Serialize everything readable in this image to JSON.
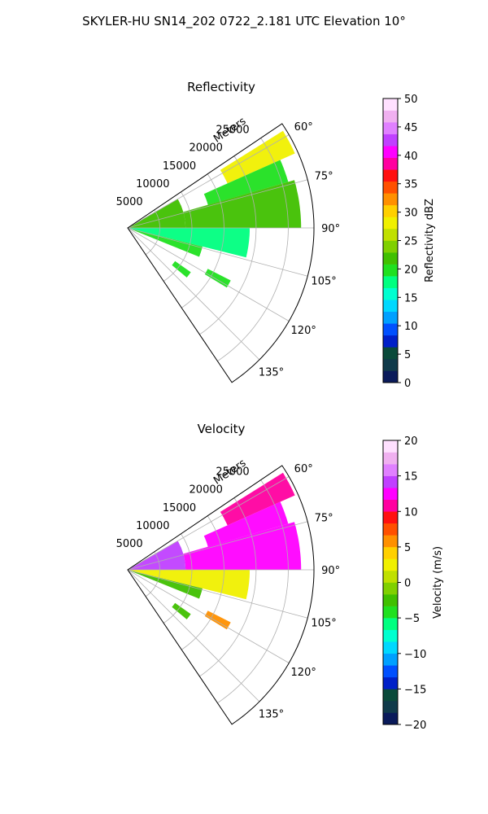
{
  "figure_title": "SKYLER-HU  SN14_202  0722_2.181 UTC Elevation 10°",
  "chart_data": [
    {
      "type": "polar-sector",
      "title": "Reflectivity",
      "range_label": "Meters",
      "range_ticks": [
        5000,
        10000,
        15000,
        20000,
        25000
      ],
      "range_tick_labels": [
        "5000",
        "10000",
        "15000",
        "20000",
        "25000"
      ],
      "azimuth_range": [
        56,
        146
      ],
      "azimuth_ticks": [
        60,
        75,
        90,
        105,
        120,
        135
      ],
      "azimuth_tick_labels": [
        "60°",
        "75°",
        "90°",
        "105°",
        "120°",
        "135°"
      ],
      "max_range": 29000,
      "grid": true,
      "colorbar": {
        "label": "Reflectivity dBZ",
        "range": [
          0,
          50
        ],
        "ticks": [
          0,
          5,
          10,
          15,
          20,
          25,
          30,
          35,
          40,
          45,
          50
        ],
        "tick_labels": [
          "0",
          "5",
          "10",
          "15",
          "20",
          "25",
          "30",
          "35",
          "40",
          "45",
          "50"
        ],
        "colors": [
          "#0a1a5a",
          "#103a4a",
          "#0a4a3a",
          "#0020c8",
          "#0050ff",
          "#00a0ff",
          "#00d8ff",
          "#00ffd0",
          "#00ff80",
          "#20e020",
          "#40c000",
          "#80d000",
          "#c0e000",
          "#f0f000",
          "#ffd000",
          "#ff9000",
          "#ff5000",
          "#ff1010",
          "#ff00a0",
          "#ff00ff",
          "#c040ff",
          "#e080ff",
          "#f0b0f0",
          "#ffe0ff"
        ]
      },
      "echo_regions": [
        {
          "az": [
            58,
            66
          ],
          "r": [
            17000,
            28500
          ],
          "value": 28
        },
        {
          "az": [
            66,
            74
          ],
          "r": [
            13000,
            26000
          ],
          "value": 20
        },
        {
          "az": [
            74,
            90
          ],
          "r": [
            9000,
            27000
          ],
          "value": 21
        },
        {
          "az": [
            60,
            90
          ],
          "r": [
            0,
            9000
          ],
          "value": 22
        },
        {
          "az": [
            90,
            104
          ],
          "r": [
            0,
            19000
          ],
          "value": 17
        },
        {
          "az": [
            104,
            112
          ],
          "r": [
            0,
            12000
          ],
          "value": 20
        },
        {
          "az": [
            117,
            121
          ],
          "r": [
            14000,
            18000
          ],
          "value": 19
        },
        {
          "az": [
            125,
            130
          ],
          "r": [
            9000,
            12000
          ],
          "value": 20
        }
      ]
    },
    {
      "type": "polar-sector",
      "title": "Velocity",
      "range_label": "Meters",
      "range_ticks": [
        5000,
        10000,
        15000,
        20000,
        25000
      ],
      "range_tick_labels": [
        "5000",
        "10000",
        "15000",
        "20000",
        "25000"
      ],
      "azimuth_range": [
        56,
        146
      ],
      "azimuth_ticks": [
        60,
        75,
        90,
        105,
        120,
        135
      ],
      "azimuth_tick_labels": [
        "60°",
        "75°",
        "90°",
        "105°",
        "120°",
        "135°"
      ],
      "max_range": 29000,
      "grid": true,
      "colorbar": {
        "label": "Velocity (m/s)",
        "range": [
          -20,
          20
        ],
        "ticks": [
          -20,
          -15,
          -10,
          -5,
          0,
          5,
          10,
          15,
          20
        ],
        "tick_labels": [
          "−20",
          "−15",
          "−10",
          "−5",
          "0",
          "5",
          "10",
          "15",
          "20"
        ],
        "colors": [
          "#0a1a5a",
          "#103a4a",
          "#0a4a3a",
          "#0020c8",
          "#0050ff",
          "#00a0ff",
          "#00d8ff",
          "#00ffd0",
          "#00ff80",
          "#20e020",
          "#40c000",
          "#80d000",
          "#c0e000",
          "#f0f000",
          "#ffd000",
          "#ff9000",
          "#ff5000",
          "#ff1010",
          "#ff00a0",
          "#ff00ff",
          "#c040ff",
          "#e080ff",
          "#f0b0f0",
          "#ffe0ff"
        ]
      },
      "echo_regions": [
        {
          "az": [
            58,
            66
          ],
          "r": [
            17000,
            28500
          ],
          "value": 11
        },
        {
          "az": [
            66,
            74
          ],
          "r": [
            13000,
            26000
          ],
          "value": 13
        },
        {
          "az": [
            74,
            90
          ],
          "r": [
            9000,
            27000
          ],
          "value": 13
        },
        {
          "az": [
            60,
            90
          ],
          "r": [
            0,
            9000
          ],
          "value": 14
        },
        {
          "az": [
            90,
            104
          ],
          "r": [
            0,
            19000
          ],
          "value": 3
        },
        {
          "az": [
            104,
            112
          ],
          "r": [
            0,
            12000
          ],
          "value": -3
        },
        {
          "az": [
            117,
            121
          ],
          "r": [
            14000,
            18000
          ],
          "value": 5
        },
        {
          "az": [
            125,
            130
          ],
          "r": [
            9000,
            12000
          ],
          "value": -2
        }
      ]
    }
  ]
}
